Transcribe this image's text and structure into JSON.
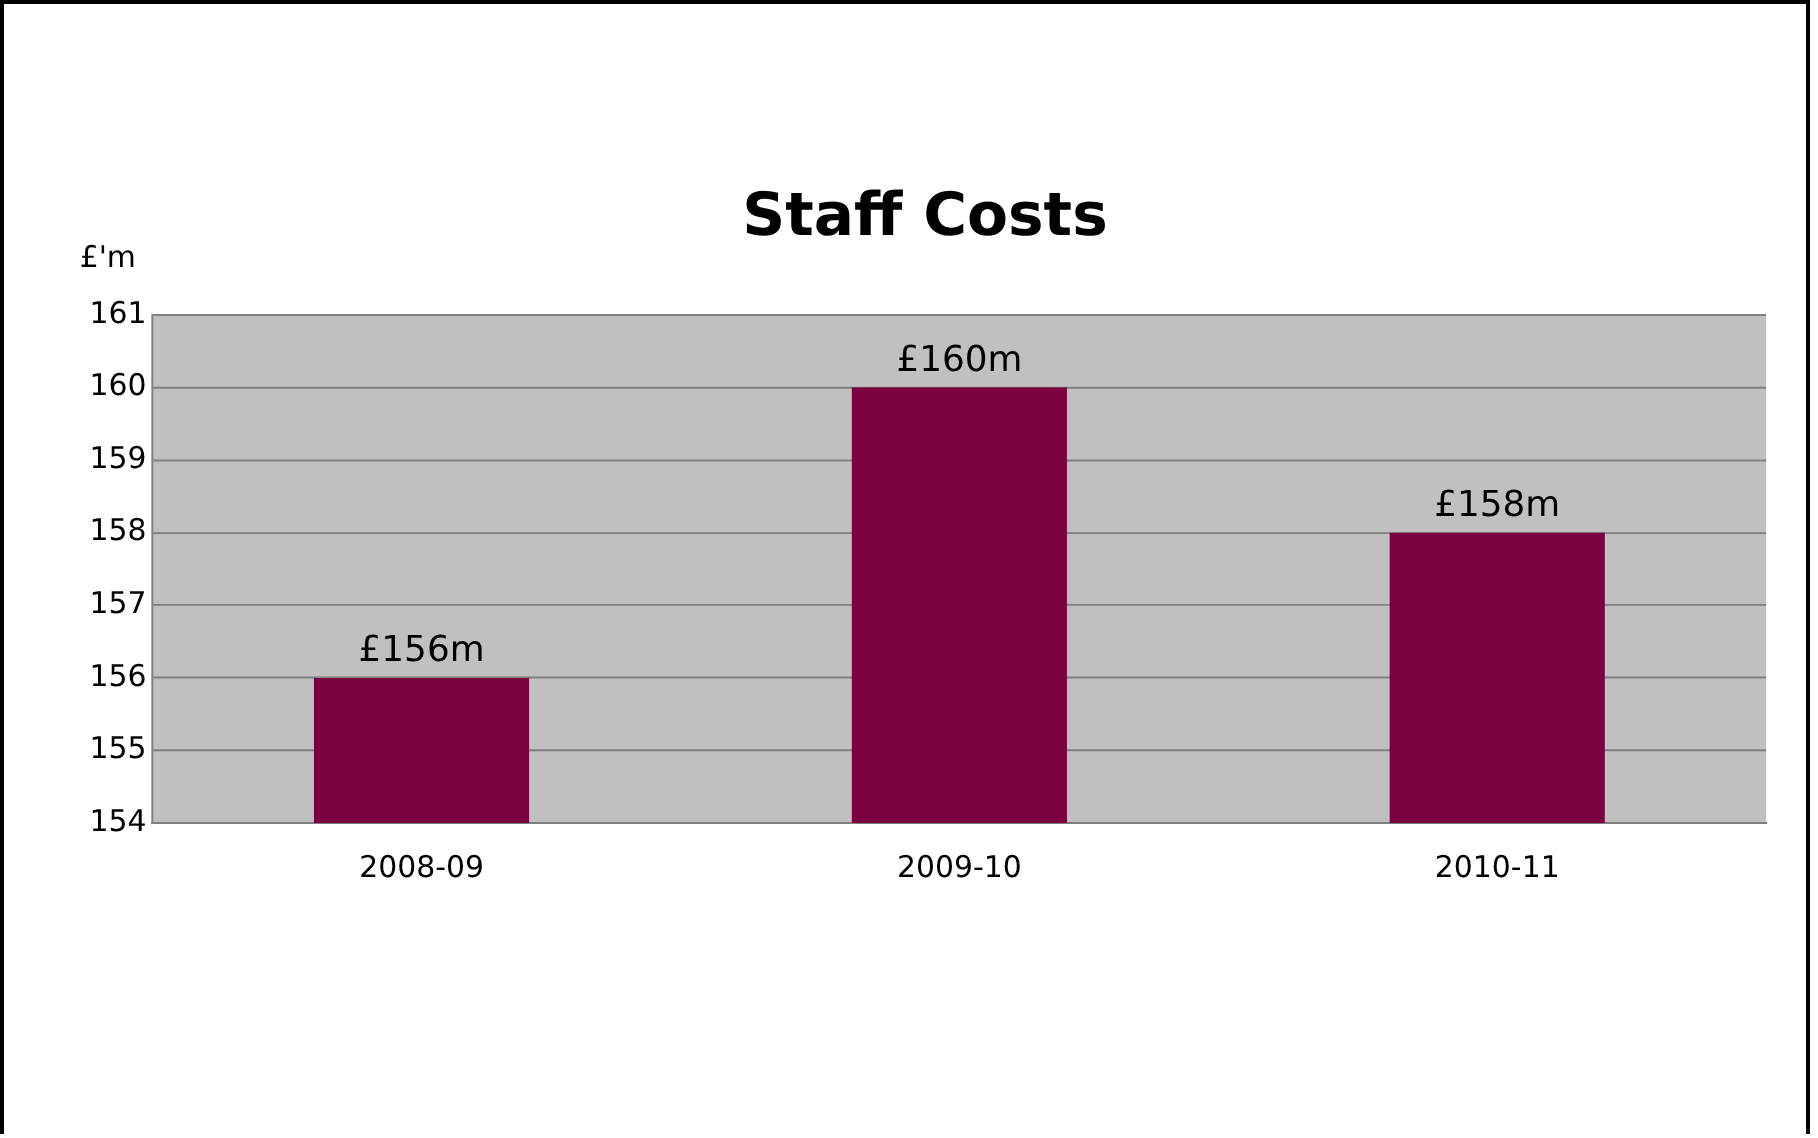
{
  "chart_data": {
    "type": "bar",
    "title": "Staff Costs",
    "ylabel": "£'m",
    "categories": [
      "2008-09",
      "2009-10",
      "2010-11"
    ],
    "values": [
      156,
      160,
      158
    ],
    "color": "#7b003f",
    "value_labels": [
      "£156m",
      "£160m",
      "£158m"
    ],
    "ylim": [
      154,
      161
    ],
    "yticks": [
      154,
      155,
      156,
      157,
      158,
      159,
      160,
      161
    ],
    "grid": "y",
    "legend": false
  }
}
